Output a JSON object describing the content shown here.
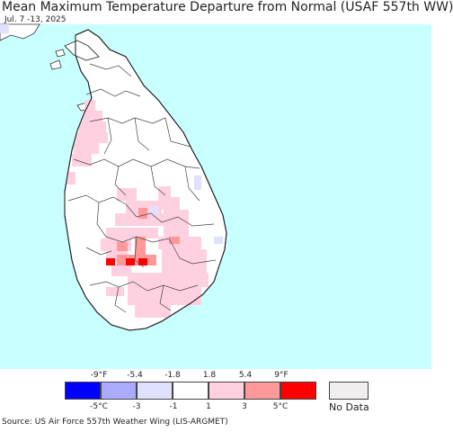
{
  "title": "Mean Maximum Temperature Departure from Normal (USAF 557th WW)",
  "subtitle": "Jul. 7 -13, 2025",
  "source": "Source: US Air Force 557th Weather Wing (LIS-ARGMET)",
  "colors": {
    "ocean": "#c8ffff",
    "land": "#ffffff",
    "boundary": "#333333",
    "bins": [
      "#0000ff",
      "#aaaaff",
      "#e0e0ff",
      "#ffffff",
      "#ffd0e0",
      "#ff9999",
      "#ff0000"
    ],
    "no_data": "#f0eeee"
  },
  "legend": {
    "f_labels": [
      "-9°F",
      "-5.4",
      "-1.8",
      "1.8",
      "5.4",
      "9°F"
    ],
    "c_labels": [
      "-5°C",
      "-3",
      "-1",
      "1",
      "3",
      "5°C"
    ],
    "no_data_label": "No Data"
  }
}
